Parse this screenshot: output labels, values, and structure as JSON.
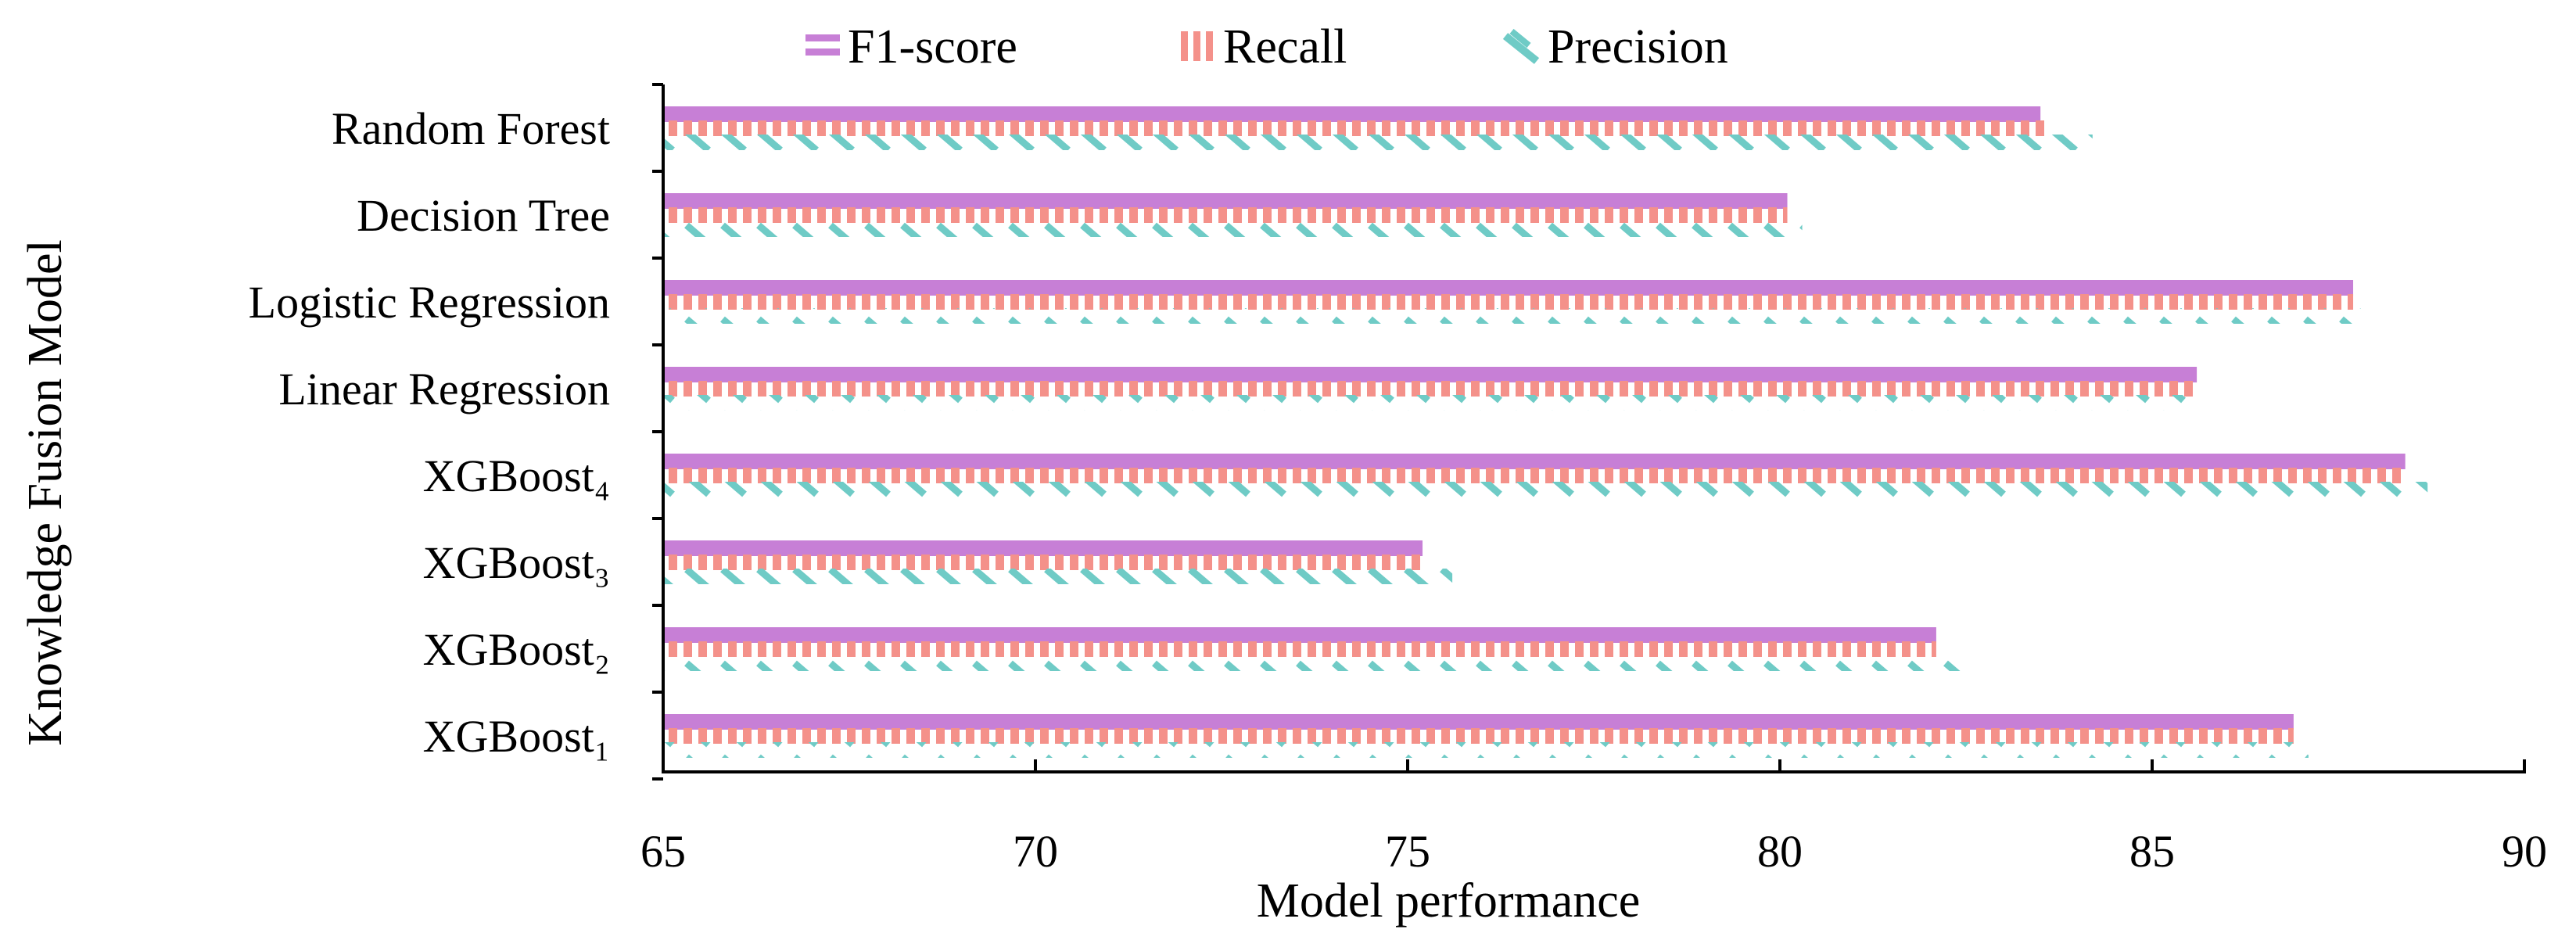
{
  "chart_data": {
    "type": "bar",
    "orientation": "horizontal",
    "title": "",
    "xlabel": "Model performance",
    "ylabel": "Knowledge Fusion Model",
    "xlim": [
      65,
      90
    ],
    "xticks": [
      "65",
      "70",
      "75",
      "80",
      "85",
      "90"
    ],
    "grid": false,
    "legend_position": "top",
    "categories": [
      "Random Forest",
      "Decision Tree",
      "Logistic Regression",
      "Linear Regression",
      "XGBoost₄",
      "XGBoost₃",
      "XGBoost₂",
      "XGBoost₁"
    ],
    "series": [
      {
        "name": "F1-score",
        "color": "#c77fd6",
        "pattern": "solid",
        "values": [
          83.5,
          80.1,
          87.7,
          85.6,
          88.4,
          75.2,
          82.1,
          86.9
        ]
      },
      {
        "name": "Recall",
        "color": "#f4918a",
        "pattern": "vertical-stripes",
        "values": [
          83.6,
          80.1,
          87.7,
          85.6,
          88.4,
          75.2,
          82.1,
          86.9
        ]
      },
      {
        "name": "Precision",
        "color": "#6fcbc6",
        "pattern": "diagonal-dashes",
        "values": [
          84.2,
          80.3,
          87.8,
          85.6,
          88.7,
          75.6,
          82.6,
          87.1
        ]
      }
    ]
  }
}
